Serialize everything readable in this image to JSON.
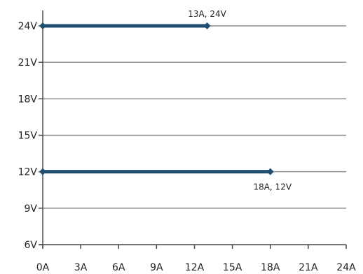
{
  "chart_data": {
    "type": "line",
    "title": "",
    "xlabel": "",
    "ylabel": "",
    "x_unit": "A",
    "y_unit": "V",
    "xlim": [
      0,
      24
    ],
    "ylim": [
      6,
      24
    ],
    "x_ticks": [
      0,
      3,
      6,
      9,
      12,
      15,
      18,
      21,
      24
    ],
    "y_ticks": [
      6,
      9,
      12,
      15,
      18,
      21,
      24
    ],
    "x_tick_labels": [
      "0A",
      "3A",
      "6A",
      "9A",
      "12A",
      "15A",
      "18A",
      "21A",
      "24A"
    ],
    "y_tick_labels": [
      "6V",
      "9V",
      "12V",
      "15V",
      "18V",
      "21V",
      "24V"
    ],
    "grid": "horizontal",
    "legend": "none",
    "colors": {
      "series": "#1f4e6e",
      "grid": "#8c8c8c",
      "axis": "#4a4a4a",
      "text": "#222222"
    },
    "series": [
      {
        "points": [
          {
            "x": 0,
            "y": 24
          },
          {
            "x": 13,
            "y": 24
          }
        ]
      },
      {
        "points": [
          {
            "x": 0,
            "y": 12
          },
          {
            "x": 18,
            "y": 12
          }
        ]
      }
    ],
    "annotations": [
      {
        "text": "13A, 24V",
        "x": 13,
        "y": 24
      },
      {
        "text": "18A, 12V",
        "x": 18,
        "y": 12
      }
    ]
  }
}
